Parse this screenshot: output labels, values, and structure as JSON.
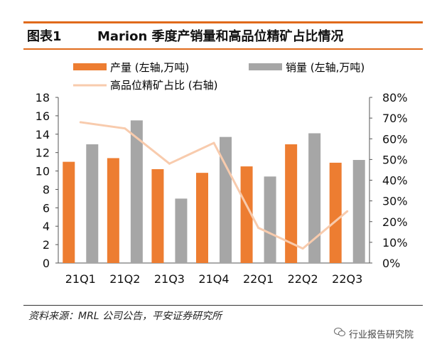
{
  "header": {
    "figure_label": "图表1",
    "figure_title": "Marion 季度产销量和高品位精矿占比情况"
  },
  "footer": {
    "source": "资料来源：MRL 公司公告，平安证券研究所",
    "watermark": "行业报告研究院"
  },
  "chart_data": {
    "type": "bar",
    "categories": [
      "21Q1",
      "21Q2",
      "21Q3",
      "21Q4",
      "22Q1",
      "22Q2",
      "22Q3"
    ],
    "series": [
      {
        "name": "产量 (左轴,万吨)",
        "kind": "bar",
        "axis": "left",
        "color": "#ed7d31",
        "values": [
          11.0,
          11.4,
          10.2,
          9.8,
          10.5,
          12.9,
          10.9
        ]
      },
      {
        "name": "销量 (左轴,万吨)",
        "kind": "bar",
        "axis": "left",
        "color": "#a6a6a6",
        "values": [
          12.9,
          15.5,
          7.0,
          13.7,
          9.4,
          14.1,
          11.2
        ]
      },
      {
        "name": "高品位精矿占比 (右轴)",
        "kind": "line",
        "axis": "right",
        "color": "#f8cbad",
        "values": [
          68,
          65,
          48,
          58,
          17,
          7,
          25
        ]
      }
    ],
    "left_axis": {
      "min": 0,
      "max": 18,
      "ticks": [
        "0",
        "2",
        "4",
        "6",
        "8",
        "10",
        "12",
        "14",
        "16",
        "18"
      ]
    },
    "right_axis": {
      "min": 0,
      "max": 80,
      "ticks": [
        "0%",
        "10%",
        "20%",
        "30%",
        "40%",
        "50%",
        "60%",
        "70%",
        "80%"
      ]
    },
    "legend_position": "top"
  }
}
